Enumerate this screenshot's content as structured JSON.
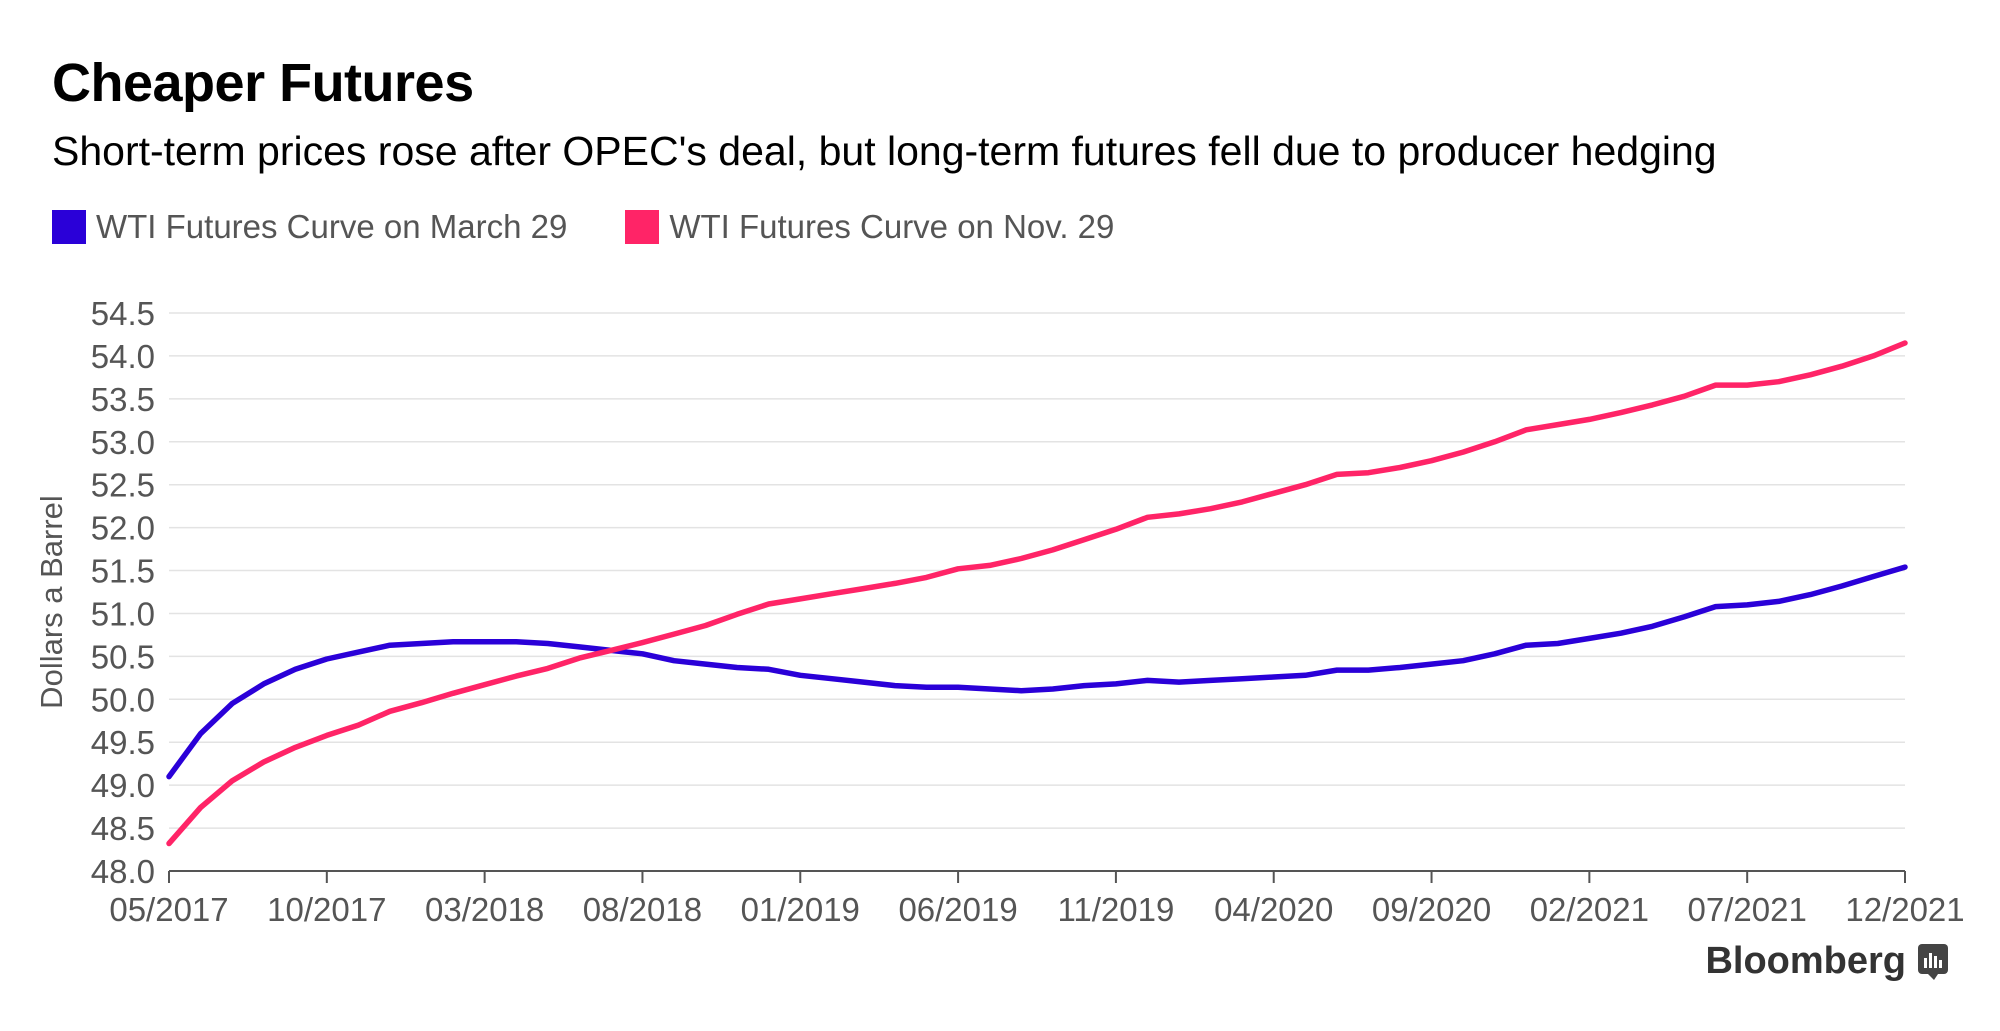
{
  "colors": {
    "series_1": "#2a00d8",
    "series_2": "#ff2467",
    "grid": "#e3e3e3",
    "axis": "#555555",
    "text": "#555555"
  },
  "brand": {
    "label": "Bloomberg",
    "icon": "bloomberg-terminal-icon"
  },
  "chart_data": {
    "type": "line",
    "title": "Cheaper Futures",
    "subtitle": "Short-term prices rose after OPEC's deal, but long-term futures fell due to producer hedging",
    "xlabel": "",
    "ylabel": "Dollars a Barrel",
    "ylim": [
      48.0,
      54.5
    ],
    "yticks": [
      "48.0",
      "48.5",
      "49.0",
      "49.5",
      "50.0",
      "50.5",
      "51.0",
      "51.5",
      "52.0",
      "52.5",
      "53.0",
      "53.5",
      "54.0",
      "54.5"
    ],
    "xticks": [
      "05/2017",
      "10/2017",
      "03/2018",
      "08/2018",
      "01/2019",
      "06/2019",
      "11/2019",
      "04/2020",
      "09/2020",
      "02/2021",
      "07/2021",
      "12/2021"
    ],
    "grid": true,
    "legend_position": "top-left",
    "x": [
      "05/2017",
      "06/2017",
      "07/2017",
      "08/2017",
      "09/2017",
      "10/2017",
      "11/2017",
      "12/2017",
      "01/2018",
      "02/2018",
      "03/2018",
      "04/2018",
      "05/2018",
      "06/2018",
      "07/2018",
      "08/2018",
      "09/2018",
      "10/2018",
      "11/2018",
      "12/2018",
      "01/2019",
      "02/2019",
      "03/2019",
      "04/2019",
      "05/2019",
      "06/2019",
      "07/2019",
      "08/2019",
      "09/2019",
      "10/2019",
      "11/2019",
      "12/2019",
      "01/2020",
      "02/2020",
      "03/2020",
      "04/2020",
      "05/2020",
      "06/2020",
      "07/2020",
      "08/2020",
      "09/2020",
      "10/2020",
      "11/2020",
      "12/2020",
      "01/2021",
      "02/2021",
      "03/2021",
      "04/2021",
      "05/2021",
      "06/2021",
      "07/2021",
      "08/2021",
      "09/2021",
      "10/2021",
      "11/2021",
      "12/2021"
    ],
    "series": [
      {
        "name": "WTI Futures Curve on March 29",
        "values": [
          49.1,
          49.6,
          49.95,
          50.18,
          50.35,
          50.47,
          50.55,
          50.63,
          50.65,
          50.67,
          50.67,
          50.67,
          50.65,
          50.61,
          50.57,
          50.53,
          50.45,
          50.41,
          50.37,
          50.35,
          50.28,
          50.24,
          50.2,
          50.16,
          50.14,
          50.14,
          50.12,
          50.1,
          50.12,
          50.16,
          50.18,
          50.22,
          50.2,
          50.22,
          50.24,
          50.26,
          50.28,
          50.34,
          50.34,
          50.37,
          50.41,
          50.45,
          50.53,
          50.63,
          50.65,
          50.71,
          50.77,
          50.85,
          50.96,
          51.08,
          51.1,
          51.14,
          51.22,
          51.32,
          51.43,
          51.54
        ]
      },
      {
        "name": "WTI Futures Curve on Nov. 29",
        "values": [
          48.32,
          48.74,
          49.05,
          49.27,
          49.44,
          49.58,
          49.7,
          49.86,
          49.96,
          50.07,
          50.17,
          50.27,
          50.36,
          50.48,
          50.57,
          50.66,
          50.76,
          50.86,
          50.99,
          51.11,
          51.17,
          51.23,
          51.29,
          51.35,
          51.42,
          51.52,
          51.56,
          51.64,
          51.74,
          51.86,
          51.98,
          52.12,
          52.16,
          52.22,
          52.3,
          52.4,
          52.5,
          52.62,
          52.64,
          52.7,
          52.78,
          52.88,
          53.0,
          53.14,
          53.2,
          53.26,
          53.34,
          53.43,
          53.53,
          53.66,
          53.66,
          53.7,
          53.78,
          53.88,
          54.0,
          54.15
        ]
      }
    ]
  }
}
